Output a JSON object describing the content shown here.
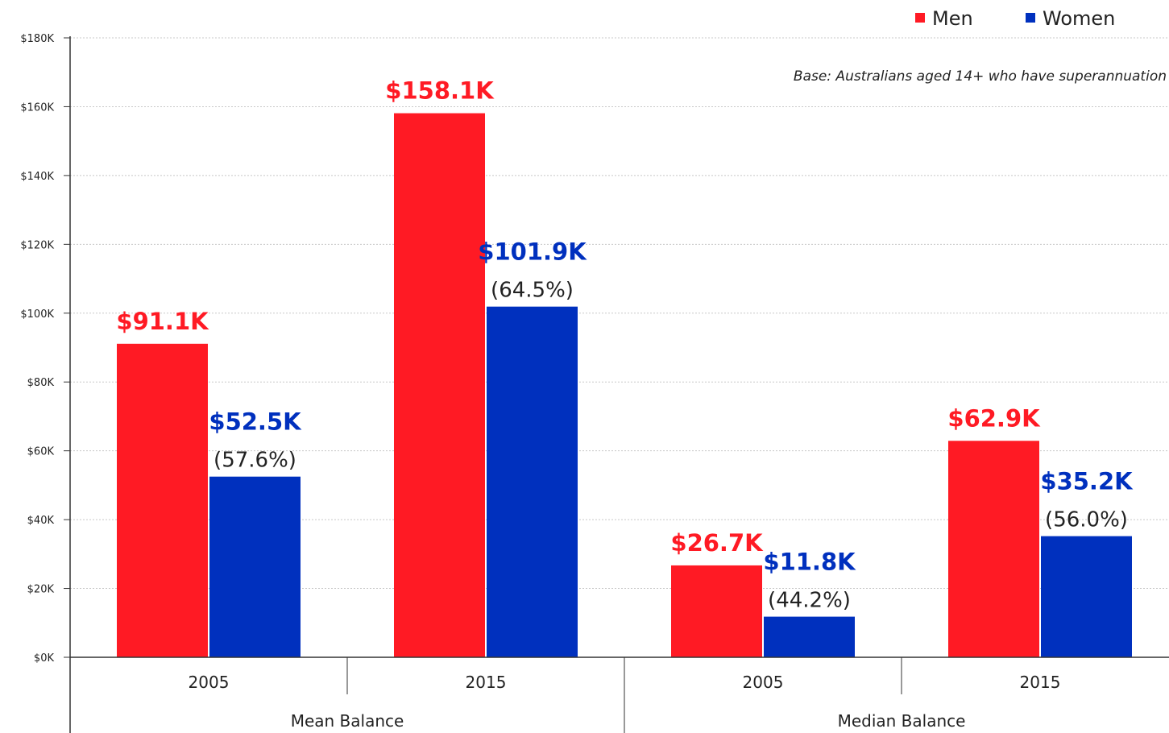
{
  "chart_data": {
    "type": "bar",
    "groups": [
      {
        "label": "Mean Balance",
        "categories": [
          "2005",
          "2015"
        ]
      },
      {
        "label": "Median Balance",
        "categories": [
          "2005",
          "2015"
        ]
      }
    ],
    "categories": [
      "2005",
      "2015",
      "2005",
      "2015"
    ],
    "series": [
      {
        "name": "Men",
        "color": "#FF1A24",
        "values": [
          91.1,
          158.1,
          26.7,
          62.9
        ],
        "labels": [
          "$91.1K",
          "$158.1K",
          "$26.7K",
          "$62.9K"
        ]
      },
      {
        "name": "Women",
        "color": "#0030BE",
        "values": [
          52.5,
          101.9,
          11.8,
          35.2
        ],
        "labels": [
          "$52.5K",
          "$101.9K",
          "$11.8K",
          "$35.2K"
        ],
        "ratio_labels": [
          "(57.6%)",
          "(64.5%)",
          "(44.2%)",
          "(56.0%)"
        ]
      }
    ],
    "ylim": [
      0,
      180
    ],
    "yticks": [
      0,
      20,
      40,
      60,
      80,
      100,
      120,
      140,
      160,
      180
    ],
    "ytick_labels": [
      "$0K",
      "$20K",
      "$40K",
      "$60K",
      "$80K",
      "$100K",
      "$120K",
      "$140K",
      "$160K",
      "$180K"
    ],
    "grid": true,
    "legend_position": "top-right",
    "annotation": "Base: Australians aged 14+ who have superannuation"
  }
}
